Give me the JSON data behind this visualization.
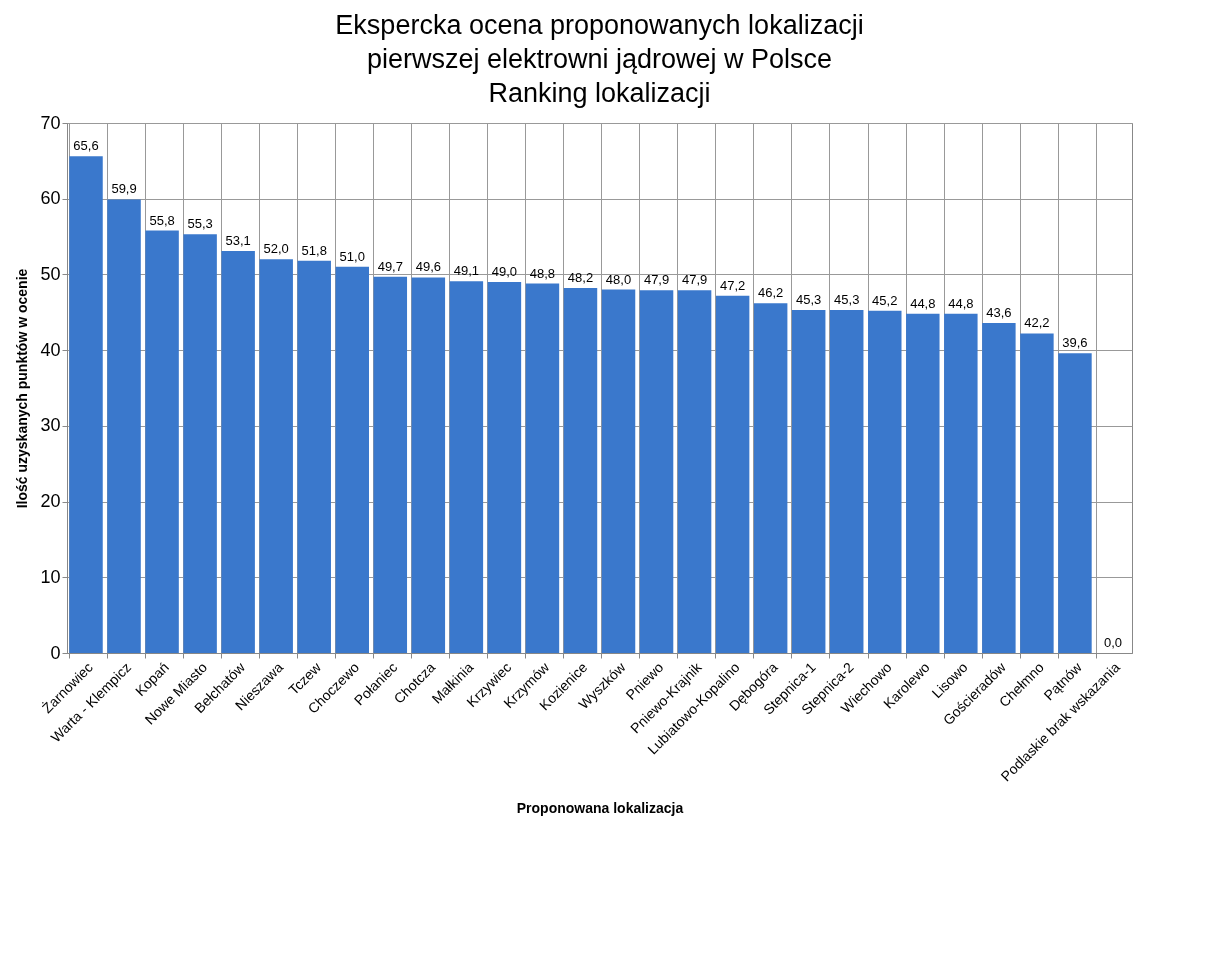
{
  "chart_data": {
    "type": "bar",
    "title": "Ekspercka ocena proponowanych lokalizacji\npierwszej elektrowni jądrowej w Polsce\nRanking lokalizacji",
    "xlabel": "Proponowana lokalizacja",
    "ylabel": "Ilość uzyskanych punktów w ocenie",
    "categories": [
      "Żarnowiec",
      "Warta - Klempicz",
      "Kopań",
      "Nowe Miasto",
      "Bełchatów",
      "Nieszawa",
      "Tczew",
      "Choczewo",
      "Połaniec",
      "Chotcza",
      "Małkinia",
      "Krzywiec",
      "Krzymów",
      "Kozienice",
      "Wyszków",
      "Pniewo",
      "Pniewo-Krajnik",
      "Lubiatowo-Kopalino",
      "Dębogóra",
      "Stepnica-1",
      "Stepnica-2",
      "Wiechowo",
      "Karolewo",
      "Lisowo",
      "Gościeradów",
      "Chełmno",
      "Pątnów",
      "Podlaskie brak wskazania"
    ],
    "values": [
      65.6,
      59.9,
      55.8,
      55.3,
      53.1,
      52.0,
      51.8,
      51.0,
      49.7,
      49.6,
      49.1,
      49.0,
      48.8,
      48.2,
      48.0,
      47.9,
      47.9,
      47.2,
      46.2,
      45.3,
      45.3,
      45.2,
      44.8,
      44.8,
      43.6,
      42.2,
      39.6,
      0.0
    ],
    "value_labels": [
      "65,6",
      "59,9",
      "55,8",
      "55,3",
      "53,1",
      "52,0",
      "51,8",
      "51,0",
      "49,7",
      "49,6",
      "49,1",
      "49,0",
      "48,8",
      "48,2",
      "48,0",
      "47,9",
      "47,9",
      "47,2",
      "46,2",
      "45,3",
      "45,3",
      "45,2",
      "44,8",
      "44,8",
      "43,6",
      "42,2",
      "39,6",
      "0,0"
    ],
    "color": "#3a78cc",
    "ylim": [
      0,
      70
    ],
    "yticks": [
      0,
      10,
      20,
      30,
      40,
      50,
      60,
      70
    ],
    "grid": true
  }
}
